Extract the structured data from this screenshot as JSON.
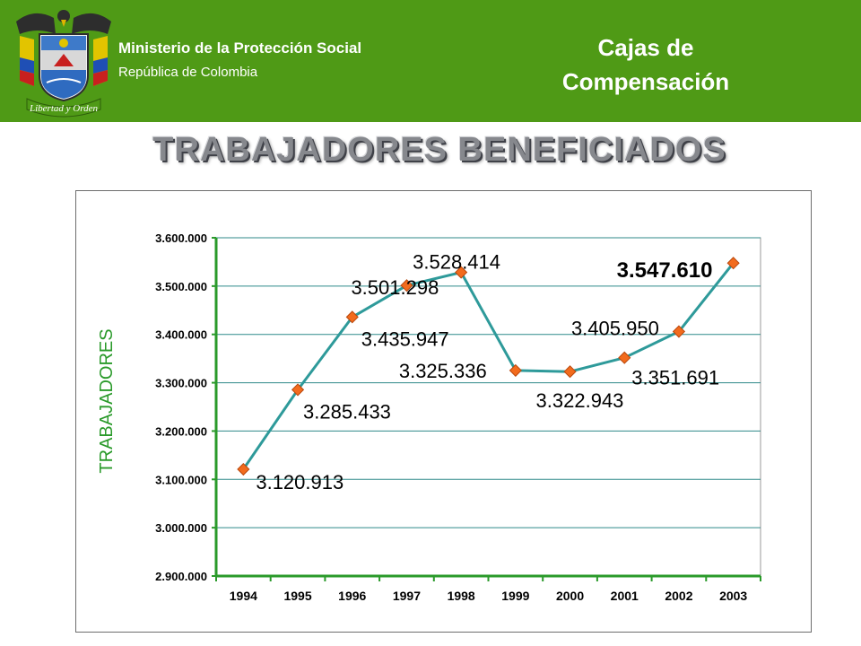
{
  "header": {
    "ministry": "Ministerio de la Protección Social",
    "republic": "República de Colombia",
    "crest_icon": "colombia-coat-of-arms-icon",
    "crest_motto": "Libertad y Orden",
    "section_line1": "Cajas de",
    "section_line2": "Compensación",
    "background_color": "#4f9a16"
  },
  "page": {
    "title": "TRABAJADORES BENEFICIADOS"
  },
  "chart_data": {
    "type": "line",
    "title": "",
    "xlabel": "",
    "ylabel": "TRABAJADORES",
    "categories": [
      "1994",
      "1995",
      "1996",
      "1997",
      "1998",
      "1999",
      "2000",
      "2001",
      "2002",
      "2003"
    ],
    "series": [
      {
        "values": [
          3120913,
          3285433,
          3435947,
          3501298,
          3528414,
          3325336,
          3322943,
          3351691,
          3405950,
          3547610
        ]
      }
    ],
    "data_labels": [
      "3.120.913",
      "3.285.433",
      "3.435.947",
      "3.501.298",
      "3.528.414",
      "3.325.336",
      "3.322.943",
      "3.351.691",
      "3.405.950",
      "3.547.610"
    ],
    "ylim": [
      2900000,
      3600000
    ],
    "ytick_labels": [
      "2.900.000",
      "3.000.000",
      "3.100.000",
      "3.200.000",
      "3.300.000",
      "3.400.000",
      "3.500.000",
      "3.600.000"
    ],
    "grid": true,
    "legend": "none",
    "line_color": "#2e9a9a",
    "marker_color": "#f26b1d",
    "ylabel_color": "#2a9a2a",
    "axis_color": "#2a9a2a"
  }
}
